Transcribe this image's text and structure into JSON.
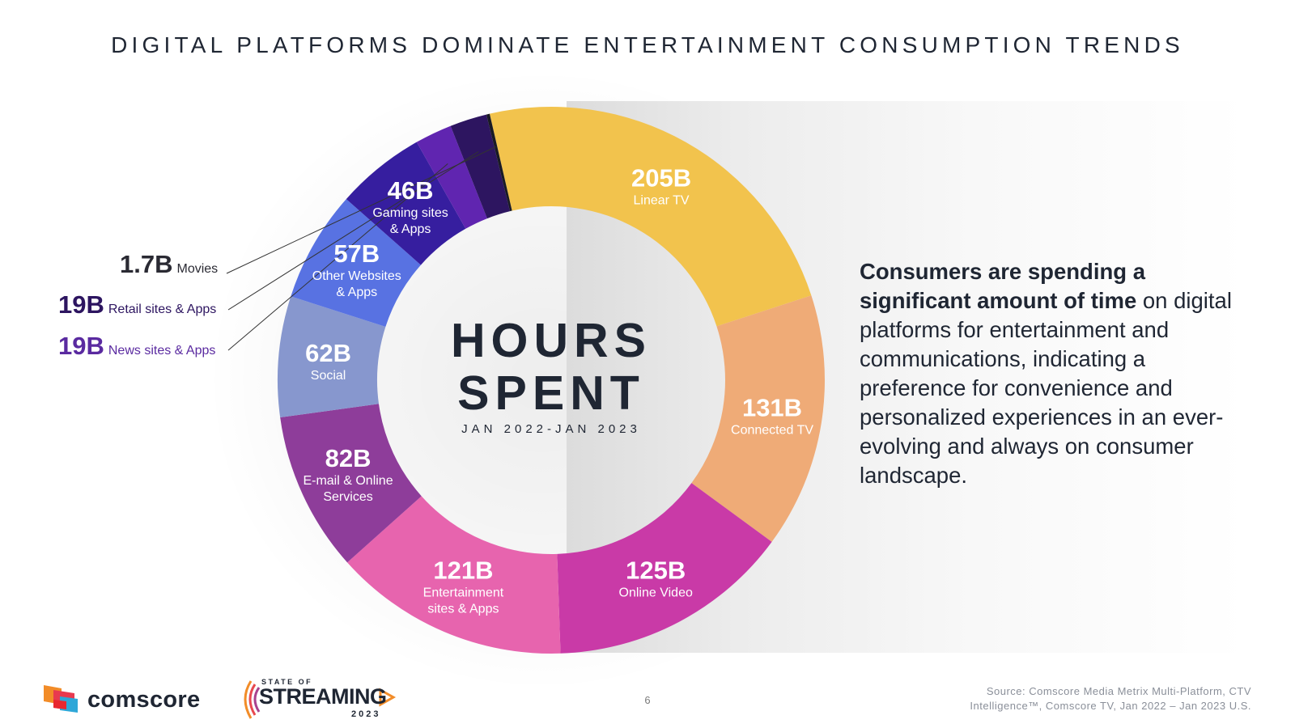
{
  "title": "DIGITAL PLATFORMS DOMINATE ENTERTAINMENT CONSUMPTION TRENDS",
  "center": {
    "line1": "HOURS",
    "line2": "SPENT",
    "period": "JAN 2022-JAN 2023"
  },
  "chart_data": {
    "type": "pie",
    "variant": "donut",
    "unit": "billions of hours",
    "categories": [
      "Linear TV",
      "Connected TV",
      "Online Video",
      "Entertainment sites & Apps",
      "E-mail & Online Services",
      "Social",
      "Other Websites & Apps",
      "Gaming sites & Apps",
      "News sites & Apps",
      "Retail sites & Apps",
      "Movies"
    ],
    "values": [
      205,
      131,
      125,
      121,
      82,
      62,
      57,
      46,
      19,
      19,
      1.7
    ],
    "value_labels": [
      "205B",
      "131B",
      "125B",
      "121B",
      "82B",
      "62B",
      "57B",
      "46B",
      "19B",
      "19B",
      "1.7B"
    ],
    "label_lines": [
      [
        "Linear TV"
      ],
      [
        "Connected TV"
      ],
      [
        "Online Video"
      ],
      [
        "Entertainment",
        "sites & Apps"
      ],
      [
        "E-mail & Online",
        "Services"
      ],
      [
        "Social"
      ],
      [
        "Other Websites",
        "& Apps"
      ],
      [
        "Gaming sites",
        "& Apps"
      ],
      [
        "News sites & Apps"
      ],
      [
        "Retail sites & Apps"
      ],
      [
        "Movies"
      ]
    ],
    "colors": [
      "#f2c34d",
      "#efab77",
      "#c93aa7",
      "#e764ae",
      "#8e3d9a",
      "#8797ce",
      "#5872e2",
      "#361e9f",
      "#6025b0",
      "#2d1560",
      "#1a1a24"
    ],
    "outside_label_colors": [
      "",
      "",
      "",
      "",
      "",
      "",
      "",
      "",
      "#5a2aa0",
      "#2d1560",
      "#2a2a33"
    ]
  },
  "body_text": {
    "bold": "Consumers are spending a significant amount of time",
    "rest": " on digital platforms for entertainment and communications, indicating a preference for convenience and personalized experiences in an ever-evolving and always on consumer landscape."
  },
  "footer": {
    "page_number": "6",
    "source": "Source: Comscore Media Metrix Multi-Platform, CTV Intelligence™, Comscore TV, Jan 2022 – Jan 2023 U.S."
  },
  "logos": {
    "comscore": "comscore",
    "state_of": "STATE OF",
    "streaming": "STREAMING",
    "year": "2023"
  },
  "colors": {
    "text": "#1f2633",
    "panel": "#e6e6e6"
  }
}
